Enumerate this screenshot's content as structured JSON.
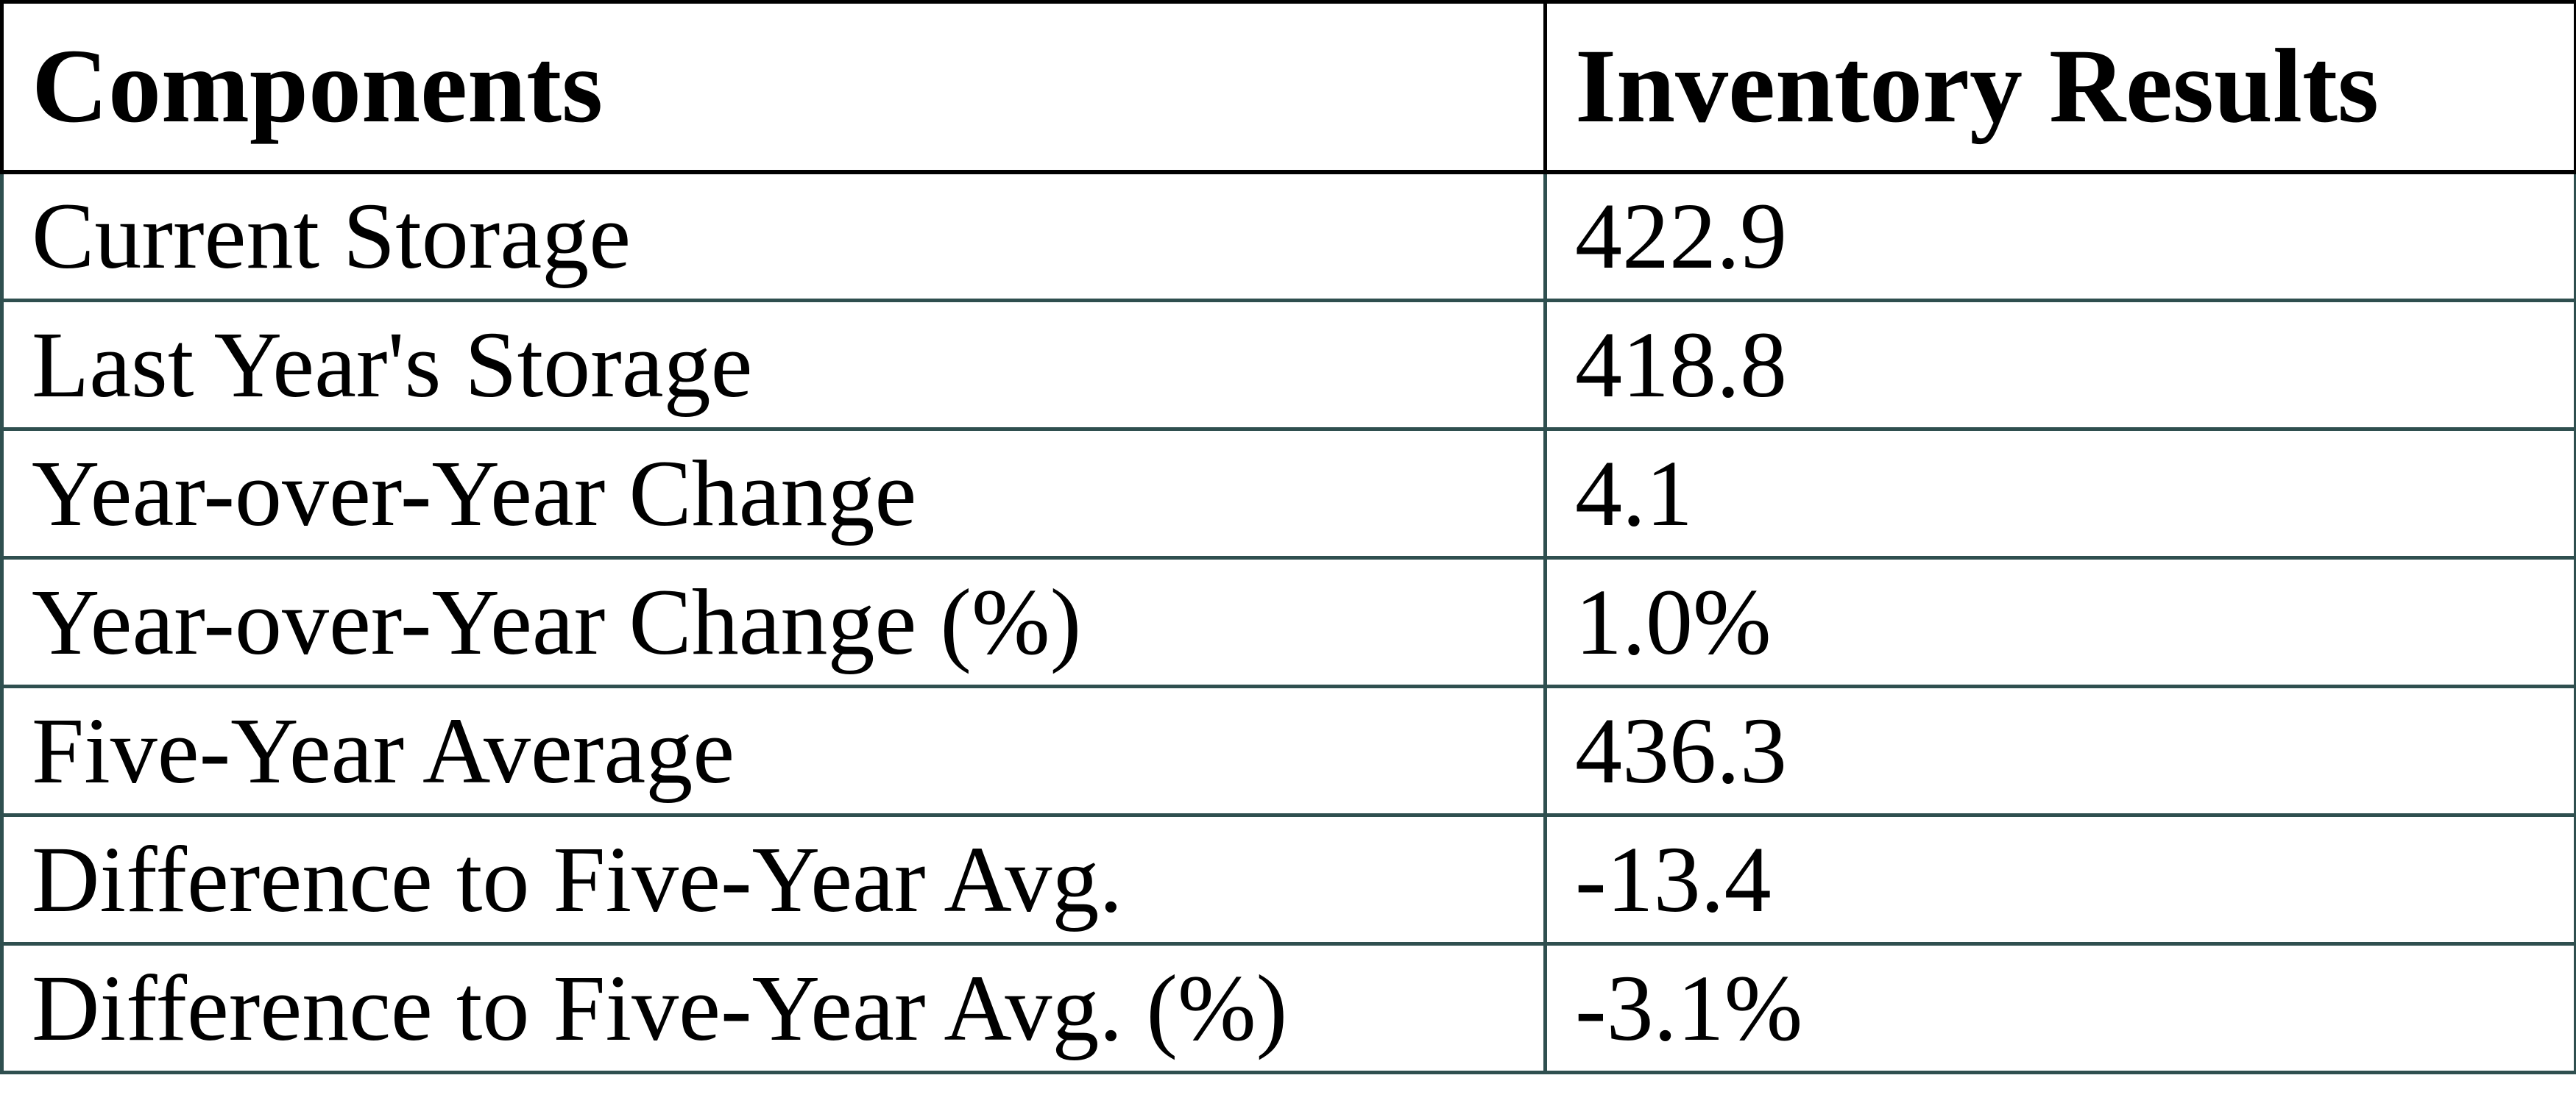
{
  "chart_data": {
    "type": "table",
    "columns": [
      "Components",
      "Inventory Results"
    ],
    "rows": [
      {
        "component": "Current Storage",
        "value": "422.9"
      },
      {
        "component": "Last Year's Storage",
        "value": "418.8"
      },
      {
        "component": "Year-over-Year Change",
        "value": "4.1"
      },
      {
        "component": "Year-over-Year Change (%)",
        "value": "1.0%"
      },
      {
        "component": "Five-Year Average",
        "value": "436.3"
      },
      {
        "component": "Difference to Five-Year Avg.",
        "value": "-13.4"
      },
      {
        "component": "Difference to Five-Year Avg. (%)",
        "value": "-3.1%"
      }
    ]
  },
  "colors": {
    "header_border": "#000000",
    "body_border": "#2f4f4f",
    "text": "#000000",
    "background": "#ffffff"
  }
}
